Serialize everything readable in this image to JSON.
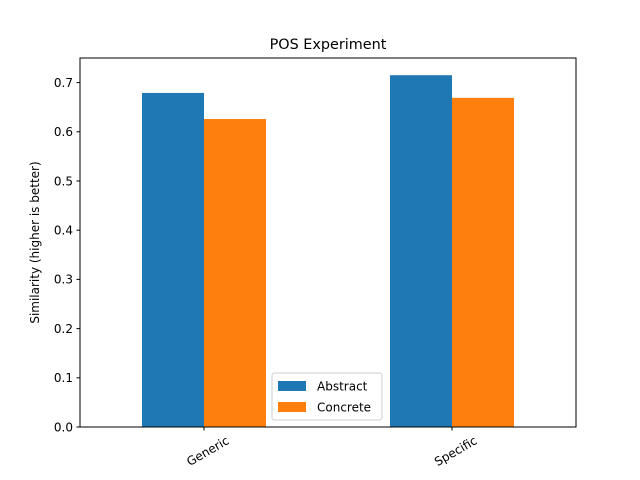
{
  "chart_data": {
    "type": "bar",
    "title": "POS Experiment",
    "xlabel": "",
    "ylabel": "Similarity (higher is better)",
    "categories": [
      "Generic",
      "Specific"
    ],
    "series": [
      {
        "name": "Abstract",
        "values": [
          0.679,
          0.715
        ],
        "color": "#1f77b4"
      },
      {
        "name": "Concrete",
        "values": [
          0.626,
          0.669
        ],
        "color": "#ff7f0e"
      }
    ],
    "ylim": [
      0,
      0.75
    ],
    "yticks": [
      0.0,
      0.1,
      0.2,
      0.3,
      0.4,
      0.5,
      0.6,
      0.7
    ],
    "ytick_labels": [
      "0.0",
      "0.1",
      "0.2",
      "0.3",
      "0.4",
      "0.5",
      "0.6",
      "0.7"
    ],
    "grid": false,
    "legend_position": "bottom-center",
    "xtick_rotation": "30deg"
  }
}
